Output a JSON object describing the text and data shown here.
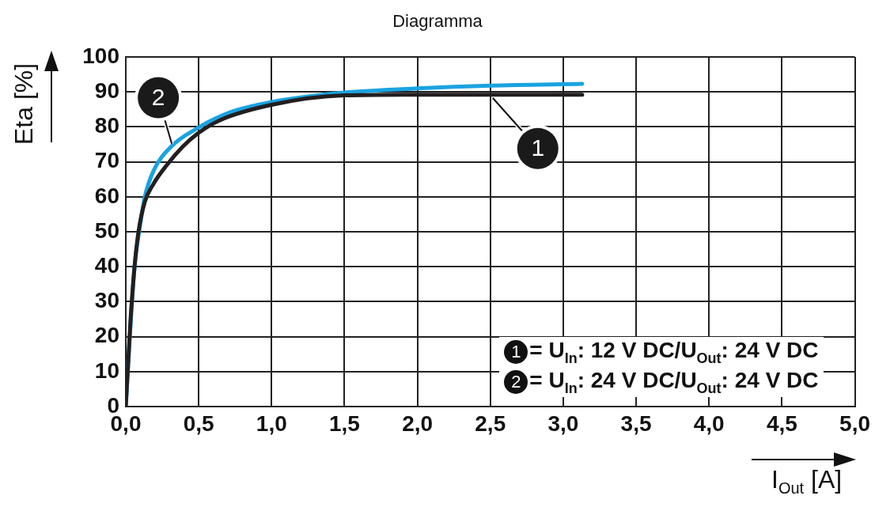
{
  "chart_data": {
    "type": "line",
    "title": "Diagramma",
    "xlabel": "I$_{Out}$ [A]",
    "ylabel": "Eta [%]",
    "xlim": [
      0,
      5
    ],
    "xticks": [
      {
        "value": 0,
        "label": "0,0"
      },
      {
        "value": 0.5,
        "label": "0,5"
      },
      {
        "value": 1,
        "label": "1,0"
      },
      {
        "value": 1.5,
        "label": "1,5"
      },
      {
        "value": 2,
        "label": "2,0"
      },
      {
        "value": 2.5,
        "label": "2,5"
      },
      {
        "value": 3,
        "label": "3,0"
      },
      {
        "value": 3.5,
        "label": "3,5"
      },
      {
        "value": 4,
        "label": "4,0"
      },
      {
        "value": 4.5,
        "label": "4,5"
      },
      {
        "value": 5,
        "label": "5,0"
      }
    ],
    "ylim": [
      0,
      100
    ],
    "yticks": [
      0,
      10,
      20,
      30,
      40,
      50,
      60,
      70,
      80,
      90,
      100
    ],
    "grid": true,
    "legend": false,
    "marker": "none",
    "line_style": "solid",
    "series": [
      {
        "name": "1",
        "color": "#231f20",
        "x": [
          0,
          0.033,
          0.06,
          0.087,
          0.13,
          0.19,
          0.28,
          0.39,
          0.49,
          0.64,
          1.0,
          1.5,
          2.0,
          2.5,
          3.13
        ],
        "values": [
          0,
          25,
          40,
          50,
          58.5,
          63.7,
          69,
          74.3,
          78,
          81.8,
          86.3,
          89,
          89.2,
          89.2,
          89.2
        ]
      },
      {
        "name": "2",
        "color": "#1aa3e0",
        "x": [
          0,
          0.024,
          0.06,
          0.096,
          0.13,
          0.19,
          0.31,
          0.49,
          0.71,
          1.0,
          1.5,
          2.0,
          2.5,
          3.13
        ],
        "values": [
          0,
          17.6,
          40,
          51.3,
          59.9,
          67.4,
          74.3,
          79.6,
          84.1,
          87.1,
          89.8,
          91,
          91.8,
          92.3
        ]
      }
    ],
    "annotations": [
      "= U$_{In}$: 12 V DC/U$_{Out}$: 24 V DC",
      "= U$_{In}$: 24 V DC/U$_{Out}$: 24 V DC"
    ]
  }
}
